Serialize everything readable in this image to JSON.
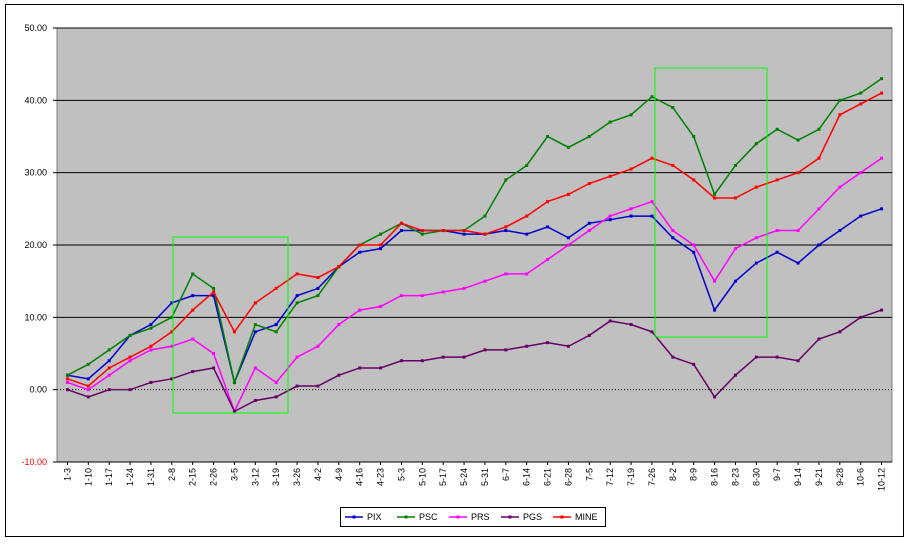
{
  "chart_data": {
    "type": "line",
    "categories": [
      "1-3",
      "1-10",
      "1-17",
      "1-24",
      "1-31",
      "2-8",
      "2-15",
      "2-26",
      "3-5",
      "3-12",
      "3-19",
      "3-26",
      "4-2",
      "4-9",
      "4-16",
      "4-23",
      "5-3",
      "5-10",
      "5-17",
      "5-24",
      "5-31",
      "6-7",
      "6-14",
      "6-21",
      "6-28",
      "7-5",
      "7-12",
      "7-19",
      "7-26",
      "8-2",
      "8-9",
      "8-16",
      "8-23",
      "8-30",
      "9-7",
      "9-14",
      "9-21",
      "9-28",
      "10-6",
      "10-12"
    ],
    "series": [
      {
        "name": "PIX",
        "color": "#0000cc",
        "values": [
          2,
          1.5,
          4,
          7.5,
          9,
          12,
          13,
          13,
          1,
          8,
          9,
          13,
          14,
          17,
          19,
          19.5,
          22,
          22,
          22,
          21.5,
          21.5,
          22,
          21.5,
          22.5,
          21,
          23,
          23.5,
          24,
          24,
          21,
          19,
          11,
          15,
          17.5,
          19,
          17.5,
          20,
          22,
          24,
          25
        ]
      },
      {
        "name": "PSC",
        "color": "#008000",
        "values": [
          2,
          3.5,
          5.5,
          7.5,
          8.5,
          10,
          16,
          14,
          1,
          9,
          8,
          12,
          13,
          17,
          20,
          21.5,
          23,
          21.5,
          22,
          22,
          24,
          29,
          31,
          35,
          33.5,
          35,
          37,
          38,
          40.5,
          39,
          35,
          27,
          31,
          34,
          36,
          34.5,
          36,
          40,
          41,
          43
        ]
      },
      {
        "name": "PRS",
        "color": "#ff00ff",
        "values": [
          1,
          0,
          2,
          4,
          5.5,
          6,
          7,
          5,
          -3,
          3,
          1,
          4.5,
          6,
          9,
          11,
          11.5,
          13,
          13,
          13.5,
          14,
          15,
          16,
          16,
          18,
          20,
          22,
          24,
          25,
          26,
          22,
          20,
          15,
          19.5,
          21,
          22,
          22,
          25,
          28,
          30,
          32
        ]
      },
      {
        "name": "PGS",
        "color": "#660066",
        "values": [
          0,
          -1,
          0,
          0,
          1,
          1.5,
          2.5,
          3,
          -3,
          -1.5,
          -1,
          0.5,
          0.5,
          2,
          3,
          3,
          4,
          4,
          4.5,
          4.5,
          5.5,
          5.5,
          6,
          6.5,
          6,
          7.5,
          9.5,
          9,
          8,
          4.5,
          3.5,
          -1,
          2,
          4.5,
          4.5,
          4,
          7,
          8,
          10,
          11
        ]
      },
      {
        "name": "MINE",
        "color": "#ff0000",
        "values": [
          1.5,
          0.5,
          3,
          4.5,
          6,
          8,
          11,
          13.5,
          8,
          12,
          14,
          16,
          15.5,
          17,
          20,
          20,
          23,
          22,
          22,
          22,
          21.5,
          22.5,
          24,
          26,
          27,
          28.5,
          29.5,
          30.5,
          32,
          31,
          29,
          26.5,
          26.5,
          28,
          29,
          30,
          32,
          38,
          39.5,
          41
        ]
      }
    ],
    "ylim": [
      -10,
      50
    ],
    "yticks": [
      {
        "value": -10,
        "label": "-10.00"
      },
      {
        "value": 0,
        "label": "0.00"
      },
      {
        "value": 10,
        "label": "10.00"
      },
      {
        "value": 20,
        "label": "20.00"
      },
      {
        "value": 30,
        "label": "30.00"
      },
      {
        "value": 40,
        "label": "40.00"
      },
      {
        "value": 50,
        "label": "50.00"
      }
    ],
    "negative_label_color": "#ff0000",
    "grid": true,
    "legend": "bottom"
  }
}
